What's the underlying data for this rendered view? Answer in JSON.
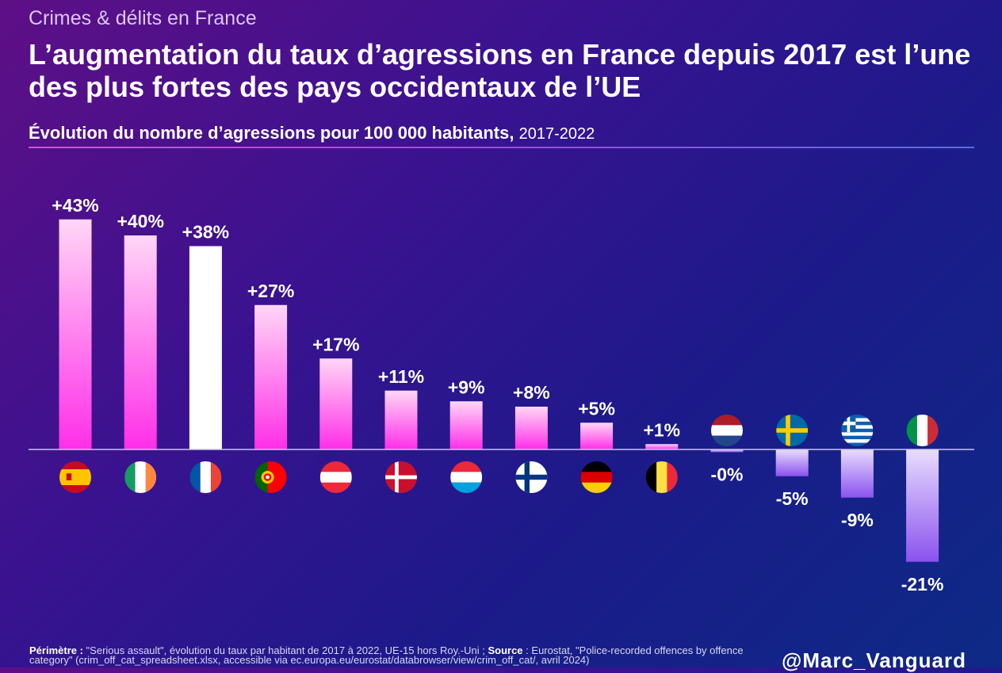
{
  "header": {
    "kicker": "Crimes & délits en France",
    "title": "L’augmentation du taux d’agressions en France depuis 2017 est l’une des plus fortes des pays occidentaux de l’UE",
    "subtitle_bold": "Évolution du nombre d’agressions pour 100 000 habitants,",
    "subtitle_years": "2017-2022"
  },
  "footer": {
    "perimetre_label": "Périmètre :",
    "perimetre_text": "\"Serious assault\", évolution du taux par habitant de 2017 à 2022, UE-15 hors Roy.-Uni ;",
    "source_label": "Source",
    "source_text": ": Eurostat, \"Police-recorded offences by offence category\" (crim_off_cat_spreadsheet.xlsx, accessible via ec.europa.eu/eurostat/databrowser/view/crim_off_cat/, avril 2024)",
    "handle": "@Marc_Vanguard"
  },
  "colors": {
    "positive_bar_top": "#ffd6f6",
    "positive_bar_bottom": "#ff2ee8",
    "negative_bar_top": "#e8dcff",
    "negative_bar_bottom": "#8a52ee",
    "highlight_bar": "#ffffff",
    "axis_line": "#c9c4e6"
  },
  "chart_data": {
    "type": "bar",
    "categories": [
      "Espagne",
      "Irlande",
      "France",
      "Portugal",
      "Autriche",
      "Danemark",
      "Luxembourg",
      "Finlande",
      "Allemagne",
      "Belgique",
      "Pays-Bas",
      "Suède",
      "Grèce",
      "Italie"
    ],
    "flags": [
      "flag-spain",
      "flag-ireland",
      "flag-france",
      "flag-portugal",
      "flag-austria",
      "flag-denmark",
      "flag-luxembourg",
      "flag-finland",
      "flag-germany",
      "flag-belgium",
      "flag-netherlands",
      "flag-sweden",
      "flag-greece",
      "flag-italy"
    ],
    "values": [
      43,
      40,
      38,
      27,
      17,
      11,
      9,
      8,
      5,
      1,
      -0.5,
      -5,
      -9,
      -21
    ],
    "labels": [
      "+43%",
      "+40%",
      "+38%",
      "+27%",
      "+17%",
      "+11%",
      "+9%",
      "+8%",
      "+5%",
      "+1%",
      "-0%",
      "-5%",
      "-9%",
      "-21%"
    ],
    "highlight": "France",
    "ylim": [
      -21,
      43
    ],
    "grid": false,
    "legend": "none"
  }
}
